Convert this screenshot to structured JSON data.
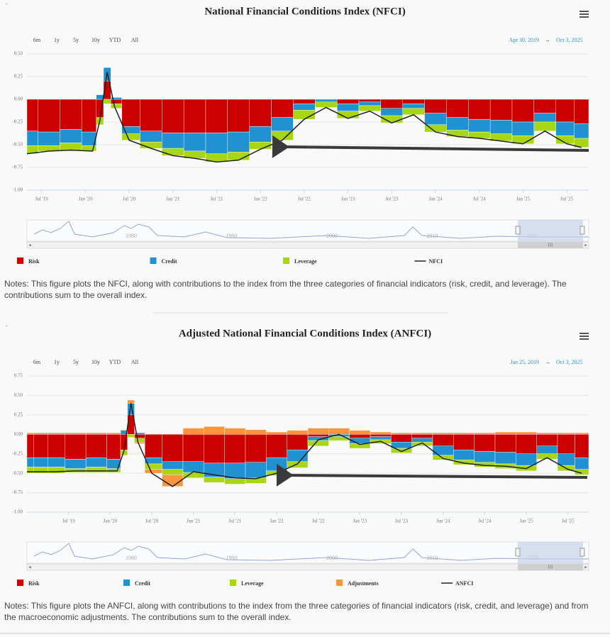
{
  "chart_data": [
    {
      "type": "bar",
      "stacked": true,
      "grid": true,
      "title": "National Financial Conditions Index (NFCI)",
      "range_buttons": [
        "6m",
        "1y",
        "5y",
        "10y",
        "YTD",
        "All"
      ],
      "date_range": {
        "from": "Apr 30, 2019",
        "separator": "→",
        "to": "Oct 3, 2025"
      },
      "xlim": [
        "2019-05",
        "2025-10"
      ],
      "x": [
        "2019-05",
        "2019-08",
        "2019-11",
        "2020-02",
        "2020-03",
        "2020-04",
        "2020-05",
        "2020-07",
        "2020-10",
        "2021-01",
        "2021-04",
        "2021-07",
        "2021-10",
        "2022-01",
        "2022-04",
        "2022-07",
        "2022-10",
        "2023-01",
        "2023-04",
        "2023-07",
        "2023-10",
        "2024-01",
        "2024-04",
        "2024-07",
        "2024-10",
        "2025-01",
        "2025-04",
        "2025-07",
        "2025-09"
      ],
      "xticks": [
        {
          "value": "2019-07",
          "label": "Jul '19"
        },
        {
          "value": "2020-01",
          "label": "Jan '20"
        },
        {
          "value": "2020-07",
          "label": "Jul '20"
        },
        {
          "value": "2021-01",
          "label": "Jan '21"
        },
        {
          "value": "2021-07",
          "label": "Jul '21"
        },
        {
          "value": "2022-01",
          "label": "Jan '22"
        },
        {
          "value": "2022-07",
          "label": "Jul '22"
        },
        {
          "value": "2023-01",
          "label": "Jan '23"
        },
        {
          "value": "2023-07",
          "label": "Jul '23"
        },
        {
          "value": "2024-01",
          "label": "Jan '24"
        },
        {
          "value": "2024-07",
          "label": "Jul '24"
        },
        {
          "value": "2025-01",
          "label": "Jan '25"
        },
        {
          "value": "2025-07",
          "label": "Jul '25"
        }
      ],
      "ylim": [
        -1,
        0.5
      ],
      "yticks": [
        {
          "value": -1,
          "label": "-1.00"
        },
        {
          "value": -0.75,
          "label": "-0.75"
        },
        {
          "value": -0.5,
          "label": "-0.50"
        },
        {
          "value": -0.25,
          "label": "-0.25"
        },
        {
          "value": 0,
          "label": "0.00"
        },
        {
          "value": 0.25,
          "label": "0.25"
        },
        {
          "value": 0.5,
          "label": "0.50"
        }
      ],
      "series": [
        {
          "name": "Risk",
          "color": "#cc0000",
          "values": [
            -0.35,
            -0.36,
            -0.33,
            -0.36,
            -0.2,
            0.2,
            -0.05,
            -0.3,
            -0.35,
            -0.37,
            -0.37,
            -0.37,
            -0.36,
            -0.3,
            -0.2,
            -0.05,
            0,
            -0.05,
            -0.03,
            -0.1,
            -0.05,
            -0.15,
            -0.2,
            -0.22,
            -0.23,
            -0.25,
            -0.15,
            -0.25,
            -0.27
          ]
        },
        {
          "name": "Credit",
          "color": "#2291d1",
          "values": [
            -0.16,
            -0.15,
            -0.15,
            -0.15,
            0.05,
            0.15,
            0.02,
            -0.08,
            -0.12,
            -0.17,
            -0.2,
            -0.23,
            -0.22,
            -0.17,
            -0.15,
            -0.07,
            -0.03,
            -0.08,
            -0.04,
            -0.08,
            -0.05,
            -0.13,
            -0.14,
            -0.14,
            -0.15,
            -0.15,
            -0.1,
            -0.15,
            -0.16
          ]
        },
        {
          "name": "Leverage",
          "color": "#a8d614",
          "values": [
            -0.09,
            -0.06,
            -0.08,
            -0.06,
            -0.08,
            -0.05,
            -0.05,
            -0.07,
            -0.07,
            -0.08,
            -0.08,
            -0.09,
            -0.09,
            -0.08,
            -0.1,
            -0.1,
            -0.06,
            -0.08,
            -0.06,
            -0.08,
            -0.07,
            -0.08,
            -0.07,
            -0.07,
            -0.08,
            -0.09,
            -0.1,
            -0.09,
            -0.1
          ]
        },
        {
          "name": "NFCI",
          "type": "line",
          "color": "#222222",
          "values": [
            -0.6,
            -0.57,
            -0.56,
            -0.57,
            -0.23,
            0.3,
            -0.08,
            -0.45,
            -0.54,
            -0.62,
            -0.65,
            -0.69,
            -0.67,
            -0.55,
            -0.45,
            -0.22,
            -0.09,
            -0.21,
            -0.13,
            -0.26,
            -0.17,
            -0.36,
            -0.41,
            -0.43,
            -0.46,
            -0.49,
            -0.35,
            -0.49,
            -0.53
          ]
        }
      ],
      "navigator_labels": [
        "1980",
        "1990",
        "2000",
        "2010",
        "2020"
      ],
      "notes": "Notes: This figure plots the NFCI, along with contributions to the index from the three categories of financial indicators (risk, credit, and leverage). The contributions sum to the overall index."
    },
    {
      "type": "bar",
      "stacked": true,
      "grid": true,
      "title": "Adjusted National Financial Conditions Index (ANFCI)",
      "range_buttons": [
        "6m",
        "1y",
        "5y",
        "10y",
        "YTD",
        "All"
      ],
      "date_range": {
        "from": "Jan 25, 2019",
        "separator": "→",
        "to": "Oct 3, 2025"
      },
      "xlim": [
        "2019-01",
        "2025-10"
      ],
      "x": [
        "2019-01",
        "2019-03",
        "2019-05",
        "2019-08",
        "2019-11",
        "2020-02",
        "2020-03",
        "2020-04",
        "2020-05",
        "2020-07",
        "2020-10",
        "2021-01",
        "2021-04",
        "2021-07",
        "2021-10",
        "2022-01",
        "2022-04",
        "2022-07",
        "2022-10",
        "2023-01",
        "2023-04",
        "2023-07",
        "2023-10",
        "2024-01",
        "2024-04",
        "2024-07",
        "2024-10",
        "2025-01",
        "2025-04",
        "2025-07",
        "2025-09"
      ],
      "xticks": [
        {
          "value": "2019-07",
          "label": "Jul '19"
        },
        {
          "value": "2020-01",
          "label": "Jan '20"
        },
        {
          "value": "2020-07",
          "label": "Jul '20"
        },
        {
          "value": "2021-01",
          "label": "Jan '21"
        },
        {
          "value": "2021-07",
          "label": "Jul '21"
        },
        {
          "value": "2022-01",
          "label": "Jan '22"
        },
        {
          "value": "2022-07",
          "label": "Jul '22"
        },
        {
          "value": "2023-01",
          "label": "Jan '23"
        },
        {
          "value": "2023-07",
          "label": "Jul '23"
        },
        {
          "value": "2024-01",
          "label": "Jan '24"
        },
        {
          "value": "2024-07",
          "label": "Jul '24"
        },
        {
          "value": "2025-01",
          "label": "Jan '25"
        },
        {
          "value": "2025-07",
          "label": "Jul '25"
        }
      ],
      "ylim": [
        -1,
        0.75
      ],
      "yticks": [
        {
          "value": -1,
          "label": "-1.00"
        },
        {
          "value": -0.75,
          "label": "-0.75"
        },
        {
          "value": -0.5,
          "label": "-0.50"
        },
        {
          "value": -0.25,
          "label": "-0.25"
        },
        {
          "value": 0,
          "label": "0.00"
        },
        {
          "value": 0.25,
          "label": "0.25"
        },
        {
          "value": 0.5,
          "label": "0.50"
        },
        {
          "value": 0.75,
          "label": "0.75"
        }
      ],
      "series": [
        {
          "name": "Risk",
          "color": "#cc0000",
          "values": [
            -0.3,
            -0.3,
            -0.3,
            -0.32,
            -0.3,
            -0.32,
            -0.2,
            0.25,
            -0.05,
            -0.3,
            -0.35,
            -0.35,
            -0.37,
            -0.37,
            -0.36,
            -0.3,
            -0.2,
            -0.03,
            0,
            -0.05,
            -0.03,
            -0.1,
            -0.05,
            -0.15,
            -0.2,
            -0.22,
            -0.23,
            -0.25,
            -0.15,
            -0.25,
            -0.3
          ]
        },
        {
          "name": "Credit",
          "color": "#2291d1",
          "values": [
            -0.12,
            -0.12,
            -0.12,
            -0.12,
            -0.12,
            -0.12,
            0.05,
            0.15,
            0.02,
            -0.08,
            -0.1,
            -0.14,
            -0.18,
            -0.2,
            -0.2,
            -0.17,
            -0.15,
            -0.05,
            -0.03,
            -0.07,
            -0.04,
            -0.08,
            -0.05,
            -0.12,
            -0.13,
            -0.14,
            -0.15,
            -0.15,
            -0.1,
            -0.15,
            -0.15
          ]
        },
        {
          "name": "Leverage",
          "color": "#a8d614",
          "values": [
            -0.08,
            -0.08,
            -0.08,
            -0.05,
            -0.07,
            -0.05,
            -0.07,
            -0.04,
            -0.05,
            -0.07,
            -0.07,
            -0.07,
            -0.07,
            -0.07,
            -0.07,
            -0.06,
            -0.08,
            -0.07,
            -0.05,
            -0.06,
            -0.05,
            -0.06,
            -0.05,
            -0.06,
            -0.06,
            -0.06,
            -0.06,
            -0.07,
            -0.07,
            -0.07,
            -0.07
          ]
        },
        {
          "name": "Adjustments",
          "color": "#f7963c",
          "values": [
            0.02,
            0.02,
            0.02,
            0.02,
            0.02,
            0.02,
            0.01,
            0.04,
            -0.02,
            -0.05,
            -0.15,
            0.08,
            0.1,
            0.08,
            0.06,
            0.03,
            0.05,
            0.08,
            0.08,
            0.05,
            0.03,
            0.02,
            0.02,
            0.02,
            0.02,
            0.02,
            0.03,
            0.03,
            0.02,
            0.02,
            0.02
          ]
        },
        {
          "name": "ANFCI",
          "type": "line",
          "color": "#222222",
          "values": [
            -0.48,
            -0.48,
            -0.48,
            -0.47,
            -0.47,
            -0.47,
            -0.21,
            0.4,
            -0.1,
            -0.5,
            -0.67,
            -0.48,
            -0.52,
            -0.56,
            -0.57,
            -0.5,
            -0.38,
            -0.07,
            0,
            -0.13,
            -0.09,
            -0.22,
            -0.11,
            -0.31,
            -0.37,
            -0.4,
            -0.41,
            -0.44,
            -0.3,
            -0.45,
            -0.5
          ]
        }
      ],
      "navigator_labels": [
        "1980",
        "1990",
        "2000",
        "2010",
        "2020"
      ],
      "notes": "Notes: This figure plots the ANFCI, along with contributions to the index from the three categories of financial indicators (risk, credit, and leverage) and from the macroeconomic adjustments. The contributions sum to the overall index."
    }
  ]
}
